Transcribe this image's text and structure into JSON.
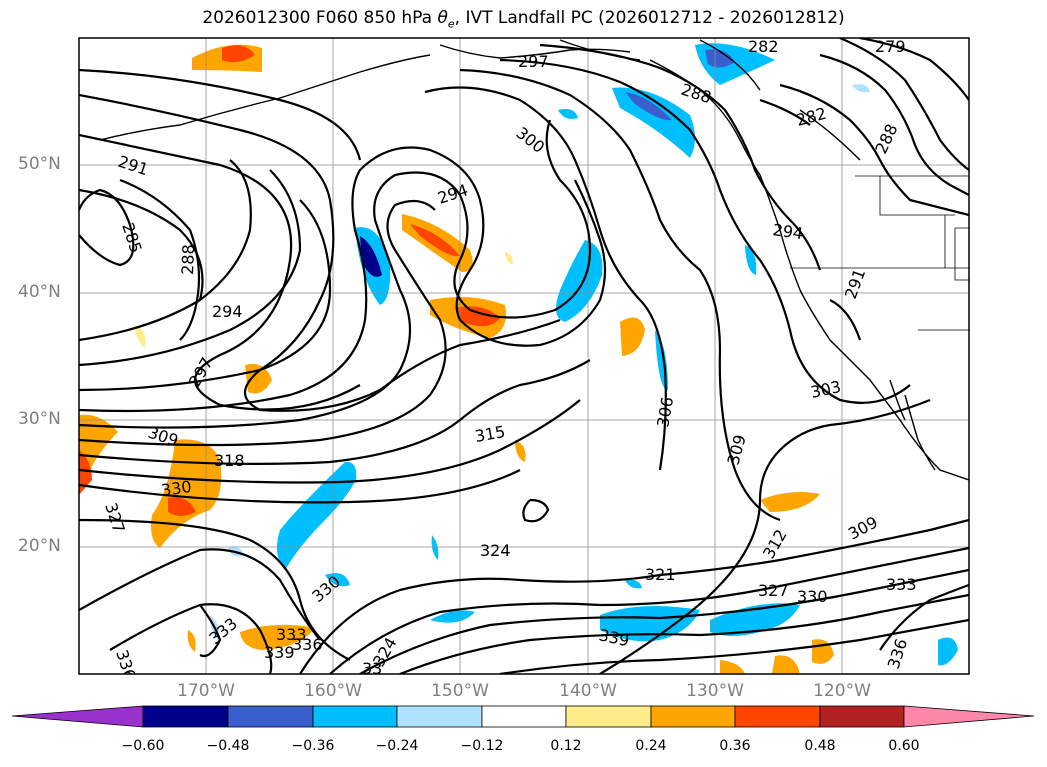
{
  "title": {
    "prefix": "2026012300 F060 850 hPa ",
    "symbol": "θ",
    "subscript": "e",
    "suffix": ", IVT Landfall PC (2026012712 - 2026012812)"
  },
  "axes": {
    "lat_labels": [
      "50°N",
      "40°N",
      "30°N",
      "20°N"
    ],
    "lon_labels": [
      "170°W",
      "160°W",
      "150°W",
      "140°W",
      "130°W",
      "120°W"
    ]
  },
  "colorbar": {
    "ticks": [
      "−0.60",
      "−0.48",
      "−0.36",
      "−0.24",
      "−0.12",
      "0.12",
      "0.24",
      "0.36",
      "0.48",
      "0.60"
    ],
    "colors": [
      "#9932cc",
      "#00008b",
      "#3a5fcd",
      "#00bfff",
      "#b0e2ff",
      "#ffffff",
      "#ffec8b",
      "#ffa500",
      "#ff4500",
      "#b22222",
      "#ff88aa"
    ]
  },
  "contour_labels": [
    "291",
    "285",
    "288",
    "294",
    "297",
    "297",
    "300",
    "294",
    "309",
    "318",
    "330",
    "327",
    "315",
    "306",
    "309",
    "303",
    "294",
    "291",
    "282",
    "279",
    "282",
    "288",
    "288",
    "312",
    "309",
    "324",
    "321",
    "327",
    "330",
    "333",
    "336",
    "339",
    "330",
    "333",
    "333",
    "339",
    "336",
    "324",
    "33",
    "336"
  ]
}
